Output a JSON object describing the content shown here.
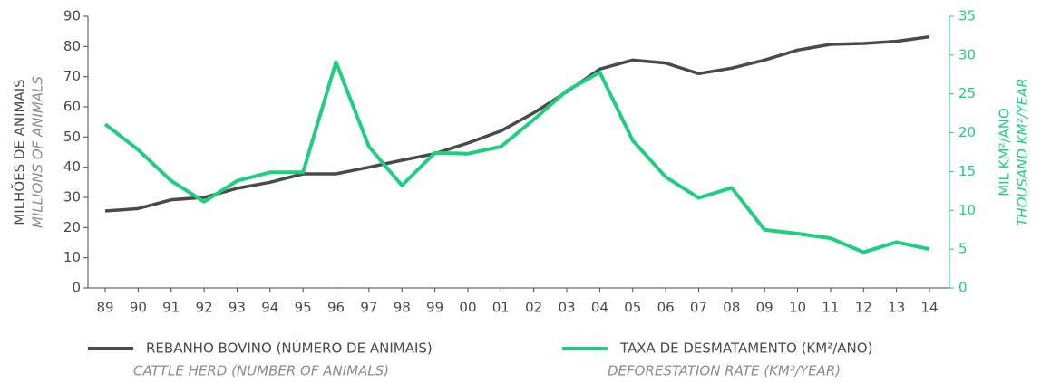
{
  "chart_data": {
    "type": "line",
    "y_label": "MILHÕES DE ANIMAIS",
    "y_label_en": "MILLIONS OF ANIMALS",
    "y2_label": "MIL KM²/ANO",
    "y2_label_en": "THOUSAND KM²/YEAR",
    "categories": [
      "89",
      "90",
      "91",
      "92",
      "93",
      "94",
      "95",
      "96",
      "97",
      "98",
      "99",
      "00",
      "01",
      "02",
      "03",
      "04",
      "05",
      "06",
      "07",
      "08",
      "09",
      "10",
      "11",
      "12",
      "13",
      "14"
    ],
    "series": [
      {
        "name": "REBANHO BOVINO (NÚMERO DE ANIMAIS)",
        "subname": "CATTLE HERD (NUMBER OF ANIMALS)",
        "color": "#4a4a48",
        "values": [
          25.5,
          26.3,
          29.2,
          30,
          33,
          35,
          37.8,
          37.8,
          40,
          42.3,
          44.5,
          48,
          52,
          58,
          65,
          72.5,
          75.5,
          74.5,
          71,
          72.8,
          75.5,
          78.8,
          80.7,
          81,
          81.7,
          83.2
        ]
      },
      {
        "name": "TAXA DE DESMATAMENTO (KM²/ANO)",
        "subname": "DEFORESTATION RATE (KM²/YEAR)",
        "color": "#1fcf80",
        "axis": "y2",
        "values": [
          21.1,
          17.8,
          13.8,
          11.1,
          13.8,
          14.9,
          14.9,
          29.1,
          18.2,
          13.2,
          17.4,
          17.3,
          18.2,
          21.7,
          25.4,
          27.8,
          19.0,
          14.3,
          11.6,
          12.9,
          7.5,
          7.0,
          6.4,
          4.6,
          5.9,
          5.0
        ]
      }
    ],
    "ylim": [
      0,
      90
    ],
    "yticks": [
      0,
      10,
      20,
      30,
      40,
      50,
      60,
      70,
      80,
      90
    ],
    "y2lim": [
      0,
      35
    ],
    "y2ticks": [
      0,
      5,
      10,
      15,
      20,
      25,
      30,
      35
    ]
  }
}
